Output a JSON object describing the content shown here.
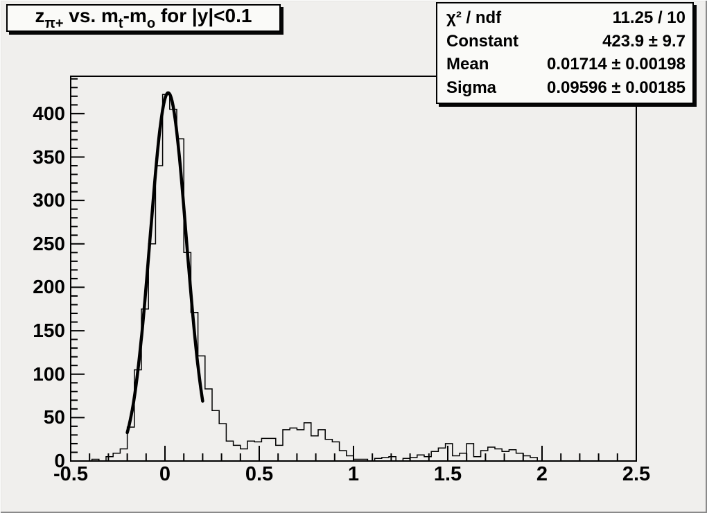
{
  "title": {
    "p1": "z",
    "p2": "π+",
    "p3": " vs. m",
    "p4": "t",
    "p5": "-m",
    "p6": "o",
    "p7": " for |y|<0.1"
  },
  "stats": {
    "rows": [
      {
        "label": "χ² / ndf",
        "value": "11.25 / 10"
      },
      {
        "label": "Constant",
        "value": "423.9 ± 9.7"
      },
      {
        "label": "Mean",
        "value": "0.01714 ± 0.00198"
      },
      {
        "label": "Sigma",
        "value": "0.09596 ± 0.00185"
      }
    ]
  },
  "colors": {
    "canvas_bg": "#f0efed",
    "pave_bg": "#fafaf8",
    "line": "#000000"
  },
  "chart_data": {
    "type": "bar",
    "subtype": "step-histogram-with-gaussian-fit",
    "title": "z_π+ vs. m_t-m_o for |y|<0.1",
    "xlabel": "",
    "ylabel": "",
    "grid": false,
    "legend": null,
    "x_axis": {
      "range": [
        -0.5,
        2.5
      ],
      "minor_tick_step": 0.1,
      "major_ticks": [
        {
          "value": -0.5,
          "label": "-0.5"
        },
        {
          "value": 0,
          "label": "0"
        },
        {
          "value": 0.5,
          "label": "0.5"
        },
        {
          "value": 1,
          "label": "1"
        },
        {
          "value": 1.5,
          "label": "1.5"
        },
        {
          "value": 2,
          "label": "2"
        },
        {
          "value": 2.5,
          "label": "2.5"
        }
      ]
    },
    "y_axis": {
      "range": [
        0,
        443
      ],
      "minor_tick_step": 10,
      "major_ticks": [
        {
          "value": 0,
          "label": "0"
        },
        {
          "value": 50,
          "label": "50"
        },
        {
          "value": 100,
          "label": "100"
        },
        {
          "value": 150,
          "label": "150"
        },
        {
          "value": 200,
          "label": "200"
        },
        {
          "value": 250,
          "label": "250"
        },
        {
          "value": 300,
          "label": "300"
        },
        {
          "value": 350,
          "label": "350"
        },
        {
          "value": 400,
          "label": "400"
        }
      ]
    },
    "bins": {
      "start": -0.5,
      "width": 0.0375,
      "values": [
        0,
        0,
        0,
        2,
        0,
        5,
        9,
        14,
        39,
        105,
        175,
        250,
        340,
        422,
        405,
        371,
        240,
        171,
        121,
        83,
        58,
        43,
        23,
        18,
        14,
        23,
        22,
        26,
        26,
        18,
        36,
        38,
        36,
        44,
        29,
        36,
        25,
        22,
        12,
        6,
        2,
        2,
        0,
        3,
        4,
        5,
        0,
        3,
        4,
        7,
        5,
        11,
        15,
        20,
        6,
        9,
        20,
        5,
        12,
        16,
        14,
        11,
        13,
        9,
        6,
        4,
        0,
        0,
        0,
        0,
        0,
        0,
        0,
        0,
        0,
        0,
        0,
        0,
        0,
        0
      ]
    },
    "fit": {
      "shape": "gaussian",
      "constant": 423.9,
      "mean": 0.01714,
      "sigma": 0.09596,
      "draw_range": [
        -0.2,
        0.2
      ]
    }
  }
}
